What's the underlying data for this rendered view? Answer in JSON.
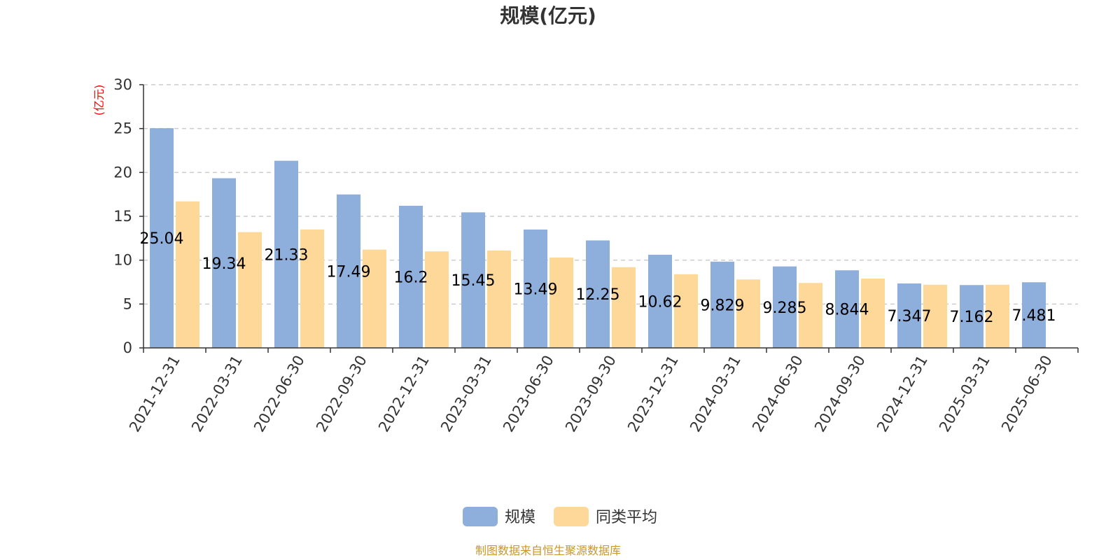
{
  "chart_data": {
    "type": "bar",
    "title": "规模(亿元)",
    "y_unit_label": "(亿元)",
    "ylim": [
      0,
      30
    ],
    "y_ticks": [
      0,
      5,
      10,
      15,
      20,
      25,
      30
    ],
    "grid": true,
    "legend_position": "bottom-center",
    "categories": [
      "2021-12-31",
      "2022-03-31",
      "2022-06-30",
      "2022-09-30",
      "2022-12-31",
      "2023-03-31",
      "2023-06-30",
      "2023-09-30",
      "2023-12-31",
      "2024-03-31",
      "2024-06-30",
      "2024-09-30",
      "2024-12-31",
      "2025-03-31",
      "2025-06-30"
    ],
    "series": [
      {
        "name": "规模",
        "color": "#8eaedc",
        "values": [
          25.04,
          19.34,
          21.33,
          17.49,
          16.2,
          15.45,
          13.49,
          12.25,
          10.62,
          9.829,
          9.285,
          8.844,
          7.347,
          7.162,
          7.481
        ],
        "data_labels": [
          "25.04",
          "19.34",
          "21.33",
          "17.49",
          "16.2",
          "15.45",
          "13.49",
          "12.25",
          "10.62",
          "9.829",
          "9.285",
          "8.844",
          "7.347",
          "7.162",
          "7.481"
        ]
      },
      {
        "name": "同类平均",
        "color": "#fdd899",
        "values": [
          16.7,
          13.2,
          13.5,
          11.2,
          11.0,
          11.1,
          10.3,
          9.2,
          8.4,
          7.8,
          7.4,
          7.9,
          7.2,
          7.2,
          null
        ]
      }
    ],
    "source": "制图数据来自恒生聚源数据库"
  }
}
